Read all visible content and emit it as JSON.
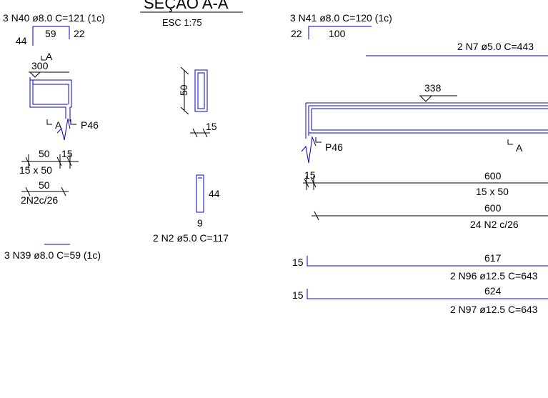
{
  "section_title": "SEÇAO A-A",
  "section_scale": "ESC 1:75",
  "left_detail": {
    "top_bar_label": "3 N40 ø8.0 C=121  (1c)",
    "dim_44": "44",
    "dim_59": "59",
    "dim_22": "22",
    "section_mark": "A",
    "dim_300": "300",
    "cut_mark": "A",
    "pillar_label": "P46",
    "spacing_50": "50",
    "spacing_15": "15",
    "section_size": "15 x 50",
    "stirrup_spacing": "50",
    "stirrup_label": "2N2c/26",
    "bottom_bar_label": "3 N39 ø8.0 C=59  (1c)"
  },
  "middle_detail": {
    "height_50": "50",
    "width_15": "15",
    "dim_44": "44",
    "dim_9": "9",
    "stirrup_label": "2 N2 ø5.0 C=117"
  },
  "right_detail": {
    "top_bar_label": "3 N41 ø8.0 C=120  (1c)",
    "dim_22": "22",
    "dim_100": "100",
    "bar_n7_label": "2 N7 ø5.0 C=443",
    "dim_338": "338",
    "pillar_label": "P46",
    "cut_mark": "A",
    "dim_15": "15",
    "length_600a": "600",
    "section_size": "15 x 50",
    "length_600b": "600",
    "stirrup_label": "24 N2 c/26",
    "hook_15a": "15",
    "length_617": "617",
    "bar_n96_label": "2 N96 ø12.5 C=643",
    "hook_15b": "15",
    "length_624": "624",
    "bar_n97_label": "2 N97 ø12.5 C=643"
  }
}
